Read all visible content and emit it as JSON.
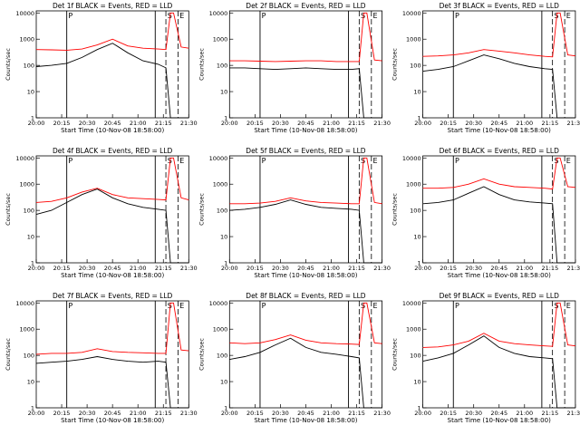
{
  "figure": {
    "xlabel": "Start Time (10-Nov-08 18:58:00)",
    "ylabel": "Counts/sec",
    "x_tick_labels": [
      "20:00",
      "20:15",
      "20:30",
      "20:45",
      "21:00",
      "21:15",
      "21:30"
    ],
    "y_tick_labels": [
      "1",
      "10",
      "100",
      "1000",
      "10000"
    ],
    "series_colors": {
      "events": "#000000",
      "lld": "#ff0000"
    },
    "marker_labels": [
      "P",
      "S",
      "E"
    ]
  },
  "chart_data": [
    {
      "type": "line",
      "title": "Det 1f BLACK = Events, RED = LLD",
      "xlim": [
        0,
        100
      ],
      "ylim": [
        1,
        12000
      ],
      "yscale": "log",
      "x": [
        0,
        10,
        20,
        30,
        40,
        50,
        60,
        70,
        80,
        85,
        88,
        90,
        95,
        100
      ],
      "series": [
        {
          "key": "lld",
          "color": "#ff0000",
          "values": [
            400,
            390,
            380,
            420,
            600,
            1000,
            550,
            450,
            420,
            400,
            10000,
            10000,
            500,
            450
          ]
        },
        {
          "key": "events",
          "color": "#000000",
          "values": [
            90,
            100,
            120,
            200,
            400,
            700,
            300,
            150,
            110,
            80,
            1,
            1,
            1,
            1
          ]
        }
      ]
    },
    {
      "type": "line",
      "title": "Det 2f BLACK = Events, RED = LLD",
      "xlim": [
        0,
        100
      ],
      "ylim": [
        1,
        12000
      ],
      "yscale": "log",
      "x": [
        0,
        10,
        20,
        30,
        40,
        50,
        60,
        70,
        80,
        85,
        88,
        90,
        95,
        100
      ],
      "series": [
        {
          "key": "lld",
          "color": "#ff0000",
          "values": [
            150,
            150,
            145,
            140,
            145,
            150,
            150,
            140,
            140,
            140,
            10000,
            10000,
            160,
            150
          ]
        },
        {
          "key": "events",
          "color": "#000000",
          "values": [
            80,
            80,
            75,
            70,
            75,
            80,
            75,
            70,
            70,
            75,
            1,
            1,
            1,
            1
          ]
        }
      ]
    },
    {
      "type": "line",
      "title": "Det 3f BLACK = Events, RED = LLD",
      "xlim": [
        0,
        100
      ],
      "ylim": [
        1,
        12000
      ],
      "yscale": "log",
      "x": [
        0,
        10,
        20,
        30,
        40,
        50,
        60,
        70,
        80,
        85,
        88,
        90,
        95,
        100
      ],
      "series": [
        {
          "key": "lld",
          "color": "#ff0000",
          "values": [
            220,
            230,
            250,
            300,
            400,
            350,
            300,
            250,
            220,
            210,
            10000,
            10000,
            250,
            230
          ]
        },
        {
          "key": "events",
          "color": "#000000",
          "values": [
            60,
            70,
            90,
            150,
            250,
            180,
            120,
            90,
            75,
            70,
            1,
            1,
            1,
            1
          ]
        }
      ]
    },
    {
      "type": "line",
      "title": "Det 4f BLACK = Events, RED = LLD",
      "xlim": [
        0,
        100
      ],
      "ylim": [
        1,
        12000
      ],
      "yscale": "log",
      "x": [
        0,
        10,
        20,
        30,
        40,
        50,
        60,
        70,
        80,
        85,
        88,
        90,
        95,
        100
      ],
      "series": [
        {
          "key": "lld",
          "color": "#ff0000",
          "values": [
            200,
            220,
            300,
            500,
            700,
            400,
            300,
            280,
            260,
            250,
            10000,
            10000,
            300,
            250
          ]
        },
        {
          "key": "events",
          "color": "#000000",
          "values": [
            70,
            100,
            200,
            400,
            650,
            300,
            180,
            130,
            110,
            100,
            1,
            1,
            1,
            1
          ]
        }
      ]
    },
    {
      "type": "line",
      "title": "Det 5f BLACK = Events, RED = LLD",
      "xlim": [
        0,
        100
      ],
      "ylim": [
        1,
        12000
      ],
      "yscale": "log",
      "x": [
        0,
        10,
        20,
        30,
        40,
        50,
        60,
        70,
        80,
        85,
        88,
        90,
        95,
        100
      ],
      "series": [
        {
          "key": "lld",
          "color": "#ff0000",
          "values": [
            180,
            180,
            190,
            220,
            300,
            230,
            200,
            190,
            180,
            180,
            10000,
            10000,
            200,
            180
          ]
        },
        {
          "key": "events",
          "color": "#000000",
          "values": [
            100,
            110,
            130,
            170,
            250,
            170,
            130,
            120,
            110,
            100,
            1,
            1,
            1,
            1
          ]
        }
      ]
    },
    {
      "type": "line",
      "title": "Det 6f BLACK = Events, RED = LLD",
      "xlim": [
        0,
        100
      ],
      "ylim": [
        1,
        12000
      ],
      "yscale": "log",
      "x": [
        0,
        10,
        20,
        30,
        40,
        50,
        60,
        70,
        80,
        85,
        88,
        90,
        95,
        100
      ],
      "series": [
        {
          "key": "lld",
          "color": "#ff0000",
          "values": [
            700,
            700,
            750,
            1000,
            1600,
            1000,
            800,
            750,
            700,
            650,
            10000,
            10000,
            800,
            750
          ]
        },
        {
          "key": "events",
          "color": "#000000",
          "values": [
            180,
            200,
            250,
            450,
            800,
            400,
            250,
            210,
            190,
            180,
            1,
            1,
            1,
            1
          ]
        }
      ]
    },
    {
      "type": "line",
      "title": "Det 7f BLACK = Events, RED = LLD",
      "xlim": [
        0,
        100
      ],
      "ylim": [
        1,
        12000
      ],
      "yscale": "log",
      "x": [
        0,
        10,
        20,
        30,
        40,
        50,
        60,
        70,
        80,
        85,
        88,
        90,
        95,
        100
      ],
      "series": [
        {
          "key": "lld",
          "color": "#ff0000",
          "values": [
            110,
            120,
            120,
            130,
            180,
            140,
            130,
            125,
            120,
            120,
            10000,
            10000,
            160,
            150
          ]
        },
        {
          "key": "events",
          "color": "#000000",
          "values": [
            50,
            55,
            60,
            70,
            90,
            70,
            60,
            55,
            60,
            55,
            1,
            1,
            1,
            1
          ]
        }
      ]
    },
    {
      "type": "line",
      "title": "Det 8f BLACK = Events, RED = LLD",
      "xlim": [
        0,
        100
      ],
      "ylim": [
        1,
        12000
      ],
      "yscale": "log",
      "x": [
        0,
        10,
        20,
        30,
        40,
        50,
        60,
        70,
        80,
        85,
        88,
        90,
        95,
        100
      ],
      "series": [
        {
          "key": "lld",
          "color": "#ff0000",
          "values": [
            300,
            280,
            300,
            400,
            600,
            380,
            300,
            280,
            270,
            260,
            10000,
            10000,
            300,
            280
          ]
        },
        {
          "key": "events",
          "color": "#000000",
          "values": [
            70,
            90,
            130,
            250,
            450,
            200,
            130,
            110,
            90,
            80,
            1,
            1,
            1,
            1
          ]
        }
      ]
    },
    {
      "type": "line",
      "title": "Det 9f BLACK = Events, RED = LLD",
      "xlim": [
        0,
        100
      ],
      "ylim": [
        1,
        12000
      ],
      "yscale": "log",
      "x": [
        0,
        10,
        20,
        30,
        40,
        50,
        60,
        70,
        80,
        85,
        88,
        90,
        95,
        100
      ],
      "series": [
        {
          "key": "lld",
          "color": "#ff0000",
          "values": [
            200,
            210,
            250,
            350,
            700,
            350,
            280,
            250,
            230,
            220,
            10000,
            10000,
            250,
            230
          ]
        },
        {
          "key": "events",
          "color": "#000000",
          "values": [
            60,
            80,
            120,
            250,
            550,
            200,
            120,
            90,
            80,
            75,
            1,
            1,
            1,
            1
          ]
        }
      ]
    }
  ]
}
